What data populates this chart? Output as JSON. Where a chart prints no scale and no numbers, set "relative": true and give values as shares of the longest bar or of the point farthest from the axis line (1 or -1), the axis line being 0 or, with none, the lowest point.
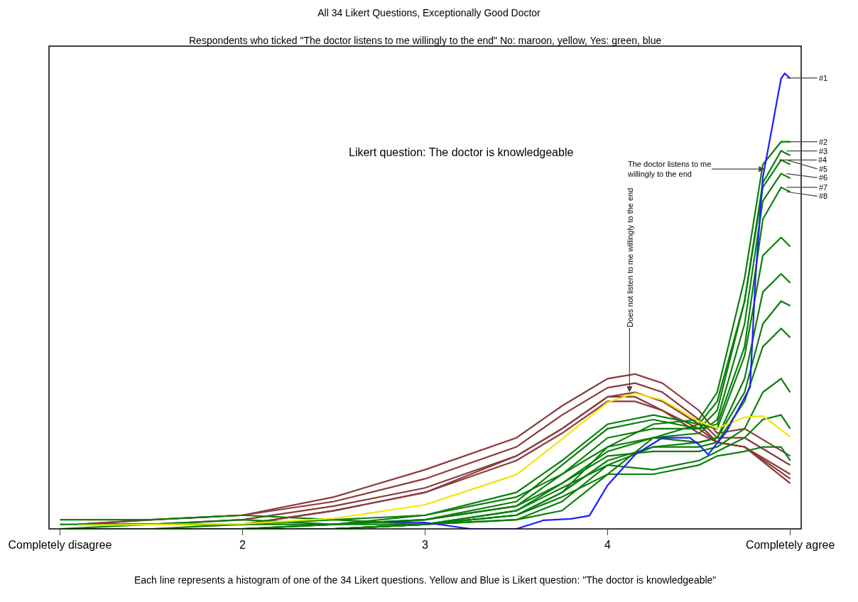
{
  "chart_data": {
    "type": "line",
    "relative": true,
    "title": "All 34 Likert Questions, Exceptionally Good Doctor",
    "subtitle": "Respondents who ticked \"The doctor listens to me willingly to the end\" No: maroon, yellow, Yes: green, blue",
    "xlim": [
      0.94,
      5.06
    ],
    "xticks": [
      {
        "value": 1,
        "label": "Completely disagree"
      },
      2,
      3,
      4,
      {
        "value": 5,
        "label": "Completely agree"
      }
    ],
    "grid": false,
    "marker": "none",
    "line_style": "solid",
    "series": [
      {
        "color": "#8b3a3a",
        "x": [
          1.1,
          1.5,
          2,
          2.5,
          3,
          3.5,
          3.75,
          4,
          4.15,
          4.3,
          4.5,
          4.6,
          4.75,
          5
        ],
        "values": [
          0.01,
          0.02,
          0.03,
          0.07,
          0.13,
          0.2,
          0.27,
          0.33,
          0.34,
          0.32,
          0.26,
          0.21,
          0.22,
          0.16
        ]
      },
      {
        "color": "#8b3a3a",
        "x": [
          1.1,
          1.5,
          2,
          2.5,
          3,
          3.5,
          3.75,
          4,
          4.15,
          4.3,
          4.5,
          4.6,
          4.75,
          5
        ],
        "values": [
          0.01,
          0.02,
          0.03,
          0.06,
          0.11,
          0.18,
          0.25,
          0.31,
          0.32,
          0.3,
          0.24,
          0.2,
          0.2,
          0.14
        ]
      },
      {
        "color": "#8b3a3a",
        "x": [
          1.1,
          1.5,
          2,
          2.5,
          3,
          3.5,
          3.75,
          4,
          4.15,
          4.3,
          4.5,
          4.6,
          4.75,
          5
        ],
        "values": [
          0.01,
          0.01,
          0.02,
          0.05,
          0.09,
          0.16,
          0.22,
          0.29,
          0.3,
          0.28,
          0.23,
          0.19,
          0.18,
          0.12
        ]
      },
      {
        "color": "#8b3a3a",
        "x": [
          1.1,
          1.5,
          2,
          2.5,
          3,
          3.5,
          3.75,
          4,
          4.15,
          4.3,
          4.5,
          4.6,
          4.75,
          5
        ],
        "values": [
          0.01,
          0.01,
          0.01,
          0.04,
          0.08,
          0.15,
          0.21,
          0.28,
          0.28,
          0.26,
          0.22,
          0.19,
          0.18,
          0.1
        ]
      },
      {
        "color": "#8b3a3a",
        "x": [
          1.1,
          1.5,
          2,
          2.5,
          3,
          3.5,
          3.75,
          4,
          4.15,
          4.3,
          4.5,
          4.6,
          4.75,
          5
        ],
        "values": [
          0.01,
          0.01,
          0.01,
          0.04,
          0.08,
          0.16,
          0.22,
          0.29,
          0.29,
          0.26,
          0.21,
          0.19,
          0.18,
          0.11
        ]
      },
      {
        "color": "#0a7f0a",
        "x": [
          1,
          1.5,
          2,
          2.5,
          3,
          3.5,
          3.75,
          4,
          4.25,
          4.5,
          4.6,
          4.75,
          4.85,
          4.95,
          5
        ],
        "values": [
          0.02,
          0.02,
          0.03,
          0.02,
          0.01,
          0.03,
          0.08,
          0.18,
          0.23,
          0.24,
          0.3,
          0.55,
          0.8,
          0.85,
          0.85
        ]
      },
      {
        "color": "#0a7f0a",
        "x": [
          1,
          1.5,
          2,
          2.5,
          3,
          3.5,
          3.75,
          4,
          4.25,
          4.5,
          4.6,
          4.75,
          4.85,
          4.95,
          5
        ],
        "values": [
          0,
          0,
          0,
          0.01,
          0.02,
          0.05,
          0.12,
          0.2,
          0.22,
          0.22,
          0.26,
          0.5,
          0.76,
          0.83,
          0.82
        ]
      },
      {
        "color": "#0a7f0a",
        "x": [
          1,
          1.5,
          2,
          2.5,
          3,
          3.5,
          3.75,
          4,
          4.25,
          4.5,
          4.6,
          4.75,
          4.85,
          4.95,
          5
        ],
        "values": [
          0,
          0.01,
          0.02,
          0.01,
          0.01,
          0.02,
          0.04,
          0.12,
          0.2,
          0.23,
          0.28,
          0.5,
          0.75,
          0.81,
          0.8
        ]
      },
      {
        "color": "#0a7f0a",
        "x": [
          1,
          1.5,
          2,
          2.5,
          3,
          3.5,
          3.75,
          4,
          4.25,
          4.5,
          4.6,
          4.75,
          4.85,
          4.95,
          5
        ],
        "values": [
          0,
          0,
          0,
          0,
          0.01,
          0.04,
          0.1,
          0.17,
          0.2,
          0.21,
          0.24,
          0.45,
          0.72,
          0.78,
          0.77
        ]
      },
      {
        "color": "#0a7f0a",
        "x": [
          1,
          1.5,
          2,
          2.5,
          3,
          3.5,
          3.75,
          4,
          4.25,
          4.5,
          4.6,
          4.75,
          4.85,
          4.95,
          5
        ],
        "values": [
          0.01,
          0.01,
          0.01,
          0.01,
          0.02,
          0.06,
          0.14,
          0.22,
          0.24,
          0.22,
          0.23,
          0.4,
          0.68,
          0.75,
          0.74
        ]
      },
      {
        "color": "#0a7f0a",
        "x": [
          1,
          1.5,
          2,
          2.5,
          3,
          3.5,
          3.75,
          4,
          4.25,
          4.5,
          4.6,
          4.75,
          4.85,
          4.95,
          5
        ],
        "values": [
          0,
          0,
          0,
          0.01,
          0.03,
          0.08,
          0.15,
          0.23,
          0.25,
          0.23,
          0.22,
          0.38,
          0.6,
          0.64,
          0.62
        ]
      },
      {
        "color": "#0a7f0a",
        "x": [
          1,
          1.5,
          2,
          2.5,
          3,
          3.5,
          3.75,
          4,
          4.25,
          4.5,
          4.6,
          4.75,
          4.85,
          4.95,
          5
        ],
        "values": [
          0,
          0,
          0,
          0,
          0.01,
          0.02,
          0.06,
          0.14,
          0.18,
          0.19,
          0.2,
          0.33,
          0.52,
          0.56,
          0.54
        ]
      },
      {
        "color": "#0a7f0a",
        "x": [
          1,
          1.5,
          2,
          2.5,
          3,
          3.5,
          3.75,
          4,
          4.25,
          4.5,
          4.6,
          4.75,
          4.85,
          4.95,
          5
        ],
        "values": [
          0,
          0,
          0.01,
          0.02,
          0.03,
          0.07,
          0.12,
          0.18,
          0.2,
          0.19,
          0.2,
          0.3,
          0.45,
          0.5,
          0.49
        ]
      },
      {
        "color": "#0a7f0a",
        "x": [
          1,
          1.5,
          2,
          2.5,
          3,
          3.5,
          3.75,
          4,
          4.25,
          4.5,
          4.6,
          4.75,
          4.85,
          4.95,
          5
        ],
        "values": [
          0,
          0,
          0,
          0,
          0.01,
          0.03,
          0.08,
          0.15,
          0.18,
          0.18,
          0.19,
          0.28,
          0.4,
          0.44,
          0.42
        ]
      },
      {
        "color": "#0a7f0a",
        "x": [
          1,
          1.5,
          2,
          2.5,
          3,
          3.5,
          3.75,
          4,
          4.25,
          4.5,
          4.6,
          4.75,
          4.85,
          4.95,
          5
        ],
        "values": [
          0,
          0,
          0,
          0.01,
          0.02,
          0.05,
          0.1,
          0.16,
          0.17,
          0.17,
          0.18,
          0.22,
          0.3,
          0.33,
          0.3
        ]
      },
      {
        "color": "#0a7f0a",
        "x": [
          1,
          1.5,
          2,
          2.5,
          3,
          3.5,
          3.75,
          4,
          4.25,
          4.5,
          4.6,
          4.75,
          4.85,
          4.95,
          5
        ],
        "values": [
          0,
          0,
          0,
          0,
          0.01,
          0.04,
          0.09,
          0.14,
          0.13,
          0.15,
          0.17,
          0.2,
          0.24,
          0.25,
          0.22
        ]
      },
      {
        "color": "#0a7f0a",
        "x": [
          1,
          1.5,
          2,
          2.5,
          3,
          3.5,
          3.75,
          4,
          4.25,
          4.5,
          4.6,
          4.75,
          4.85,
          4.95,
          5
        ],
        "values": [
          0,
          0,
          0,
          0,
          0.01,
          0.03,
          0.07,
          0.12,
          0.12,
          0.14,
          0.16,
          0.17,
          0.18,
          0.18,
          0.15
        ]
      },
      {
        "color": "#f2e600",
        "x": [
          1.1,
          2,
          2.5,
          3,
          3.5,
          3.75,
          4,
          4.15,
          4.3,
          4.5,
          4.6,
          4.75,
          4.85,
          5
        ],
        "values": [
          0.008,
          0.011,
          0.023,
          0.053,
          0.119,
          0.197,
          0.278,
          0.298,
          0.283,
          0.236,
          0.221,
          0.245,
          0.248,
          0.202
        ]
      },
      {
        "color": "#1f1fff",
        "x": [
          2.8,
          3,
          3.25,
          3.5,
          3.65,
          3.8,
          3.9,
          4,
          4.15,
          4.3,
          4.45,
          4.5,
          4.55,
          4.65,
          4.78,
          4.81,
          4.85,
          4.9,
          4.95,
          4.97,
          5
        ],
        "values": [
          0.016,
          0.014,
          0,
          0,
          0.019,
          0.022,
          0.029,
          0.096,
          0.163,
          0.2,
          0.2,
          0.185,
          0.163,
          0.213,
          0.311,
          0.554,
          0.772,
          0.88,
          0.989,
          1,
          0.989
        ]
      }
    ],
    "annotations": [
      {
        "text": "#1",
        "x": 4.98,
        "y": 0.99
      },
      {
        "text": "#2",
        "x": 4.98,
        "y": 0.85
      },
      {
        "text": "#3",
        "x": 4.98,
        "y": 0.83
      },
      {
        "text": "#4",
        "x": 4.94,
        "y": 0.81
      },
      {
        "text": "#5",
        "x": 4.98,
        "y": 0.81
      },
      {
        "text": "#6",
        "x": 4.98,
        "y": 0.78
      },
      {
        "text": "#7",
        "x": 4.98,
        "y": 0.75
      },
      {
        "text": "#8",
        "x": 4.98,
        "y": 0.74
      },
      "Likert question: The doctor is knowledgeable",
      {
        "text": "The doctor listens to me\nwillingly to the end",
        "x": 4.86,
        "y": 0.79
      },
      {
        "text": "Does not listen to me willingly to the end",
        "x": 4.12,
        "y": 0.3
      },
      "Each line represents a histogram of one of the 34 Likert questions. Yellow and Blue is Likert question: \"The doctor is knowledgeable\""
    ]
  }
}
